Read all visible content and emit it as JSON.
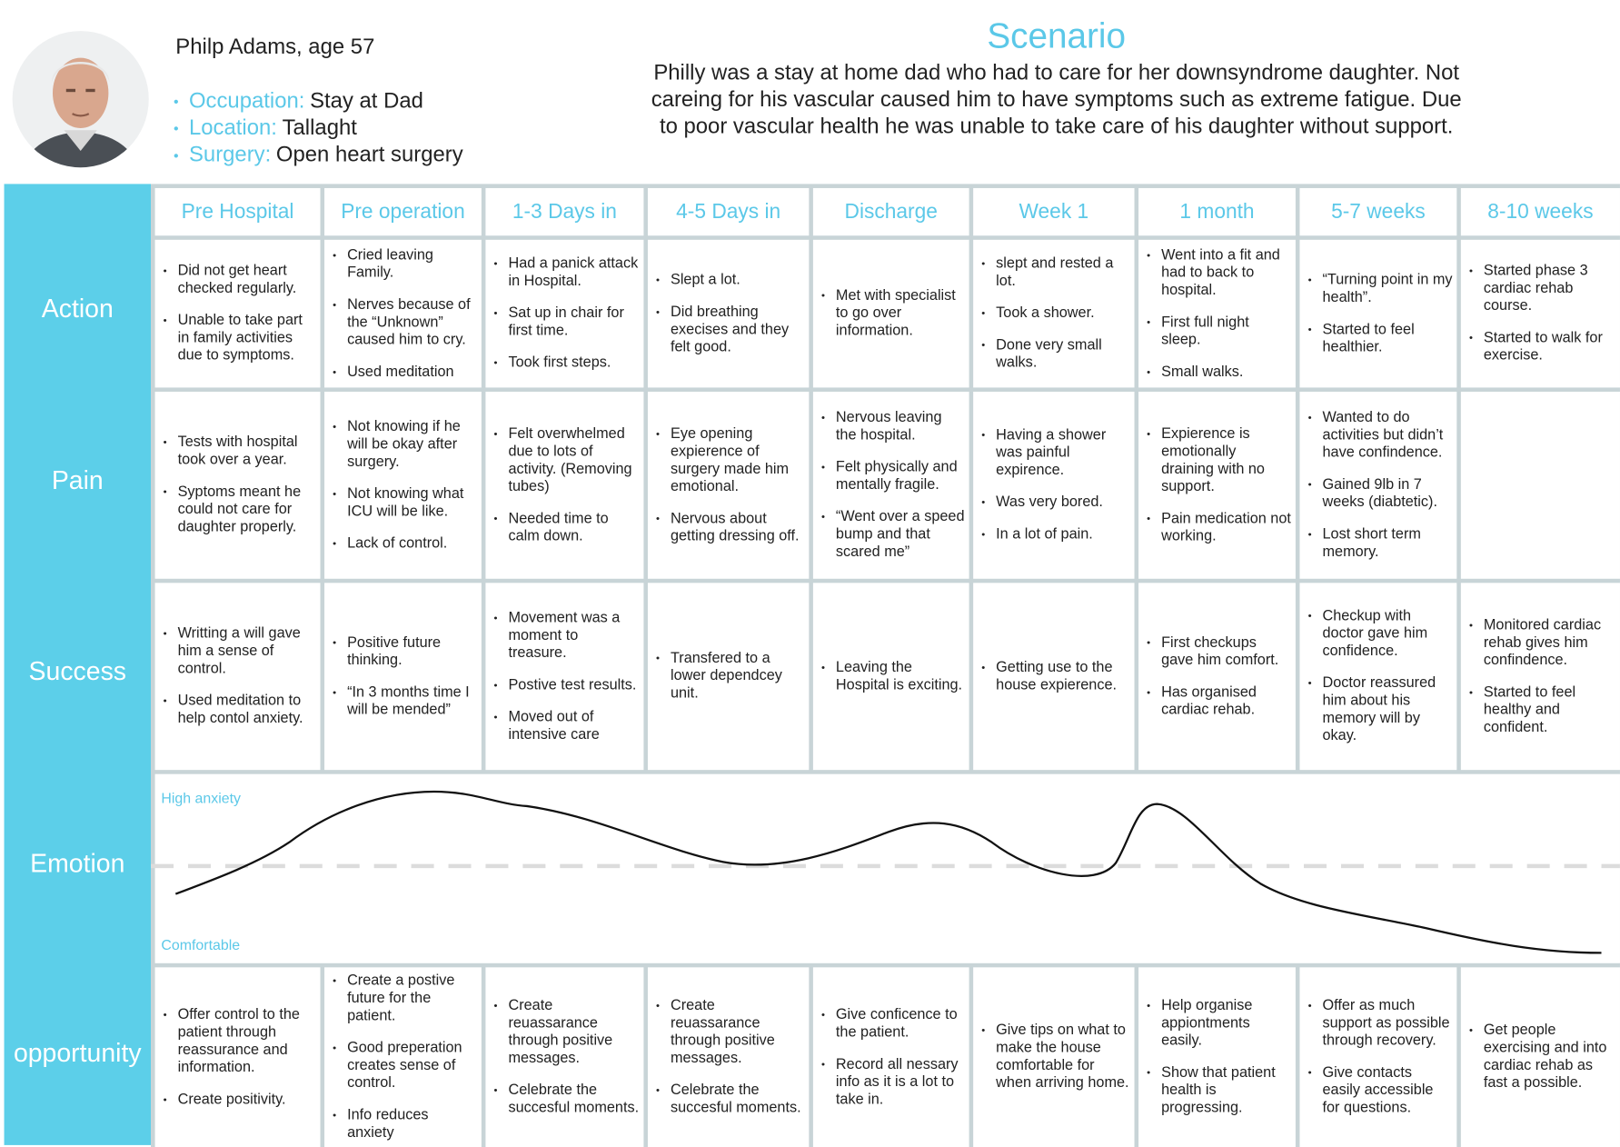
{
  "persona": {
    "name": "Philp Adams, age 57",
    "details": [
      {
        "label": "Occupation:",
        "value": "Stay at Dad"
      },
      {
        "label": "Location:",
        "value": "Tallaght"
      },
      {
        "label": "Surgery:",
        "value": "Open heart surgery"
      }
    ]
  },
  "scenario": {
    "title": "Scenario",
    "text": "Philly was a stay at home dad who had to care for her downsyndrome daughter. Not careing for his vascular caused him to have symptoms such as extreme fatigue. Due to poor vascular health he was unable to take care of his daughter without support."
  },
  "stages": [
    "Pre Hospital",
    "Pre operation",
    "1-3 Days in",
    "4-5 Days in",
    "Discharge",
    "Week 1",
    "1 month",
    "5-7 weeks",
    "8-10 weeks"
  ],
  "rows": [
    {
      "label": "Action",
      "cells": [
        [
          "Did not get heart checked regularly.",
          "Unable to take part in family activities due to symptoms."
        ],
        [
          "Cried leaving Family.",
          "Nerves because of the “Unknown” caused him to cry.",
          "Used meditation"
        ],
        [
          "Had a panick attack in Hospital.",
          "Sat up in chair for first time.",
          "Took first steps."
        ],
        [
          "Slept a lot.",
          "Did breathing execises and they felt good."
        ],
        [
          "Met with specialist to go over information."
        ],
        [
          "slept and rested a lot.",
          "Took a shower.",
          "Done very small walks."
        ],
        [
          "Went into a fit and had to back to hospital.",
          "First full night sleep.",
          "Small walks."
        ],
        [
          "“Turning point in my health”.",
          "Started to feel healthier."
        ],
        [
          "Started phase 3 cardiac rehab course.",
          "Started to walk for exercise."
        ]
      ]
    },
    {
      "label": "Pain",
      "cells": [
        [
          "Tests with hospital took over a year.",
          "Syptoms meant he could not care for daughter properly."
        ],
        [
          "Not knowing if he will be okay after surgery.",
          "Not knowing what ICU will be like.",
          "Lack of control."
        ],
        [
          "Felt overwhelmed due to lots of activity. (Removing tubes)",
          "Needed time to calm down."
        ],
        [
          "Eye opening expierence of surgery made him emotional.",
          "Nervous about getting dressing off."
        ],
        [
          "Nervous leaving the hospital.",
          "Felt physically and mentally fragile.",
          "“Went over a speed bump and that scared me”"
        ],
        [
          "Having a shower was painful expirence.",
          "Was very bored.",
          "In a lot of pain."
        ],
        [
          "Expierence is emotionally draining with no support.",
          "Pain medication not working."
        ],
        [
          "Wanted to do activities but didn’t have confindence.",
          "Gained 9lb in 7 weeks (diabtetic).",
          "Lost short term memory."
        ],
        []
      ]
    },
    {
      "label": "Success",
      "cells": [
        [
          "Writting a will gave him a sense of control.",
          "Used meditation to help contol anxiety."
        ],
        [
          "Positive future thinking.",
          "“In 3 months time I will be mended”"
        ],
        [
          "Movement was a moment to treasure.",
          "Postive test results.",
          "Moved out of intensive care"
        ],
        [
          "Transfered to a lower dependcey unit."
        ],
        [
          "Leaving the Hospital is exciting."
        ],
        [
          "Getting use to the house expierence."
        ],
        [
          "First checkups gave him comfort.",
          "Has organised cardiac rehab."
        ],
        [
          "Checkup with doctor gave him confidence.",
          "Doctor reassured him about his memory will by okay."
        ],
        [
          "Monitored cardiac rehab gives him confindence.",
          "Started to feel healthy and confident."
        ]
      ]
    }
  ],
  "emotion": {
    "label": "Emotion",
    "high_label": "High anxiety",
    "low_label": "Comfortable"
  },
  "opportunity": {
    "label": "opportunity",
    "cells": [
      [
        "Offer control to the patient through reassurance and information.",
        "Create positivity."
      ],
      [
        "Create a postive future for the patient.",
        "Good preperation creates sense of control.",
        "Info reduces anxiety"
      ],
      [
        "Create reuassarance through positive messages.",
        "Celebrate the succesful moments."
      ],
      [
        "Create reuassarance through positive messages.",
        "Celebrate the succesful moments."
      ],
      [
        "Give conficence to the patient.",
        "Record all nessary info as it is a lot to take in."
      ],
      [
        "Give tips on what to make the house comfortable for when arriving home."
      ],
      [
        "Help organise appiontments easily.",
        "Show that patient health is progressing."
      ],
      [
        "Offer as much support as possible through recovery.",
        "Give contacts easily accessible for questions."
      ],
      [
        "Get people exercising and into cardiac rehab as fast a possible."
      ]
    ]
  }
}
